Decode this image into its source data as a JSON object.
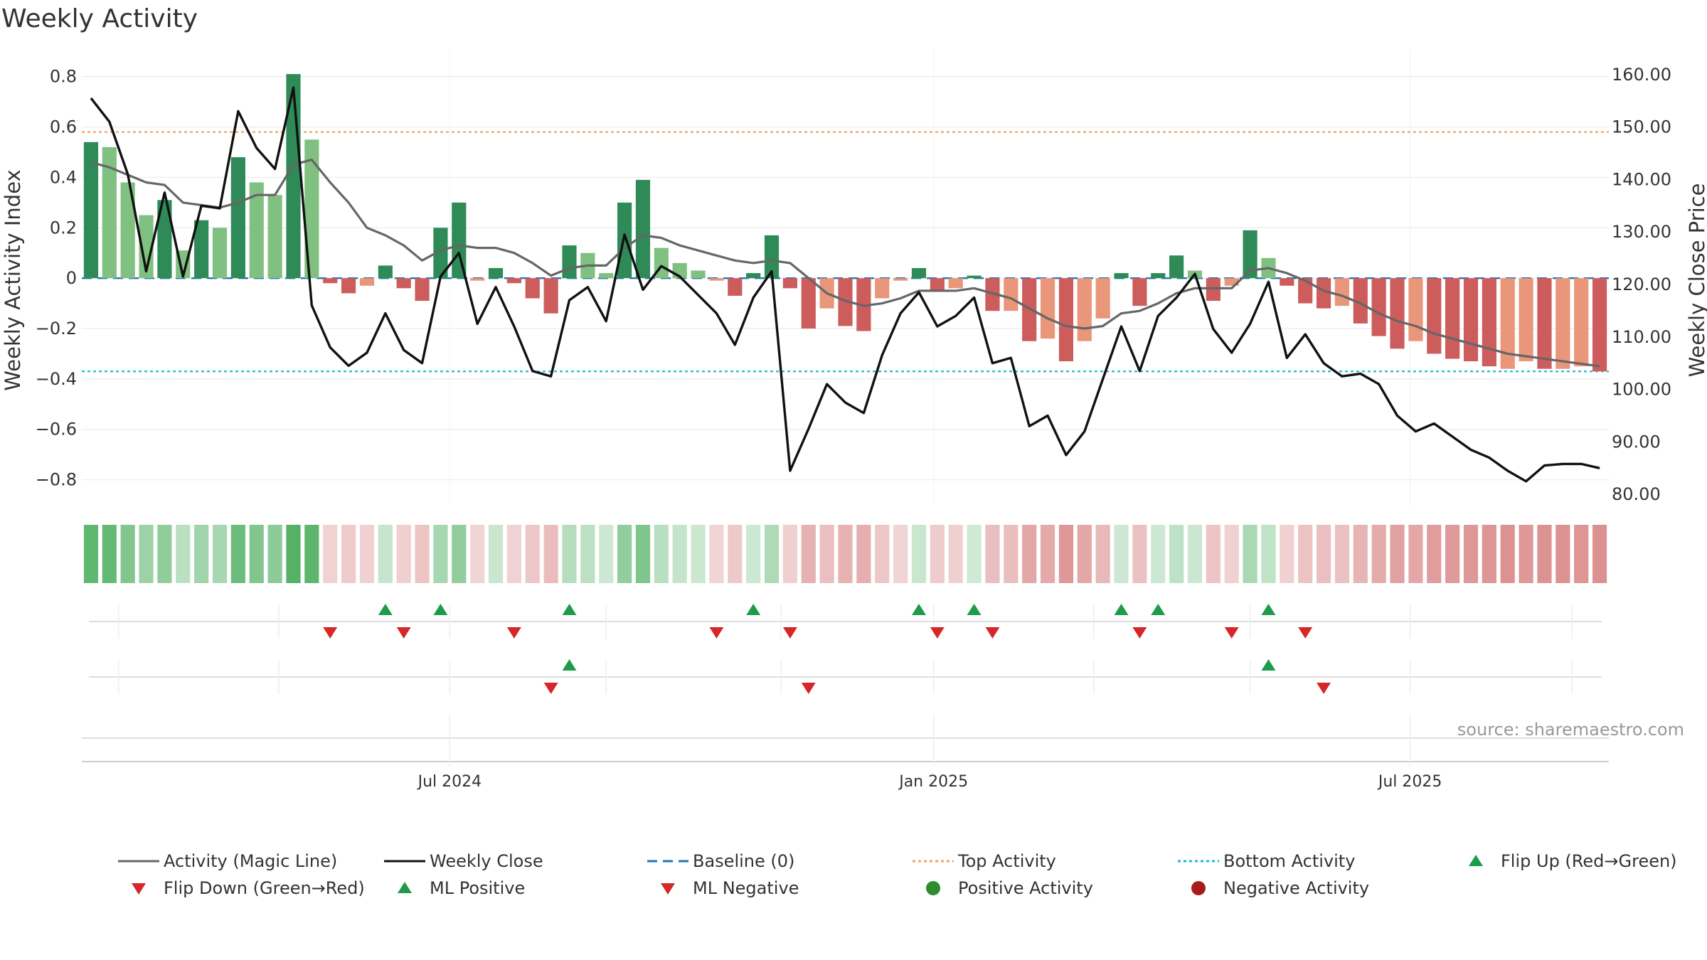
{
  "chart_data": {
    "type": "bar",
    "title": "Weekly Activity",
    "ylabel": "Weekly Activity Index",
    "y2label": "Weekly Close Price",
    "ylim": [
      -0.9,
      0.85
    ],
    "y2lim": [
      78,
      162
    ],
    "yticks": [
      "0.8",
      "0.6",
      "0.4",
      "0.2",
      "0",
      "−0.2",
      "−0.4",
      "−0.6",
      "−0.8"
    ],
    "ytick_values": [
      0.8,
      0.6,
      0.4,
      0.2,
      0,
      -0.2,
      -0.4,
      -0.6,
      -0.8
    ],
    "y2ticks": [
      "160.00",
      "150.00",
      "140.00",
      "130.00",
      "120.00",
      "110.00",
      "100.00",
      "90.00",
      "80.00"
    ],
    "y2tick_values": [
      160,
      150,
      140,
      130,
      120,
      110,
      100,
      90,
      80
    ],
    "x_ticks": [
      {
        "label": "Jul 2024",
        "week": 19.5
      },
      {
        "label": "Jan 2025",
        "week": 45.8
      },
      {
        "label": "Jul 2025",
        "week": 71.7
      }
    ],
    "activity": [
      0.54,
      0.52,
      0.38,
      0.25,
      0.31,
      0.11,
      0.23,
      0.2,
      0.48,
      0.38,
      0.33,
      0.81,
      0.55,
      -0.02,
      -0.06,
      -0.03,
      0.05,
      -0.04,
      -0.09,
      0.2,
      0.3,
      -0.01,
      0.04,
      -0.02,
      -0.08,
      -0.14,
      0.13,
      0.1,
      0.02,
      0.3,
      0.39,
      0.12,
      0.06,
      0.03,
      -0.01,
      -0.07,
      0.02,
      0.17,
      -0.04,
      -0.2,
      -0.12,
      -0.19,
      -0.21,
      -0.08,
      -0.01,
      0.04,
      -0.05,
      -0.04,
      0.01,
      -0.13,
      -0.13,
      -0.25,
      -0.24,
      -0.33,
      -0.25,
      -0.16,
      0.02,
      -0.11,
      0.02,
      0.09,
      0.03,
      -0.09,
      -0.03,
      0.19,
      0.08,
      -0.03,
      -0.1,
      -0.12,
      -0.11,
      -0.18,
      -0.23,
      -0.28,
      -0.25,
      -0.3,
      -0.32,
      -0.33,
      -0.35,
      -0.36,
      -0.33,
      -0.36,
      -0.36,
      -0.35,
      -0.37
    ],
    "bar_shade": [
      "dark",
      "light",
      "light",
      "light",
      "dark",
      "light",
      "dark",
      "light",
      "dark",
      "light",
      "light",
      "dark",
      "light",
      "dark",
      "dark",
      "light",
      "dark",
      "dark",
      "dark",
      "dark",
      "dark",
      "light",
      "dark",
      "dark",
      "dark",
      "dark",
      "dark",
      "light",
      "light",
      "dark",
      "dark",
      "light",
      "light",
      "light",
      "light",
      "dark",
      "dark",
      "dark",
      "dark",
      "dark",
      "light",
      "dark",
      "dark",
      "light",
      "light",
      "dark",
      "dark",
      "light",
      "dark",
      "dark",
      "light",
      "dark",
      "light",
      "dark",
      "light",
      "light",
      "dark",
      "dark",
      "dark",
      "dark",
      "light",
      "dark",
      "light",
      "dark",
      "light",
      "dark",
      "dark",
      "dark",
      "light",
      "dark",
      "dark",
      "dark",
      "light",
      "dark",
      "dark",
      "dark",
      "dark",
      "light",
      "light",
      "dark",
      "light",
      "light",
      "dark"
    ],
    "magic_line": [
      0.46,
      0.44,
      0.41,
      0.38,
      0.37,
      0.3,
      0.29,
      0.28,
      0.3,
      0.33,
      0.33,
      0.45,
      0.47,
      0.38,
      0.3,
      0.2,
      0.17,
      0.13,
      0.07,
      0.11,
      0.13,
      0.12,
      0.12,
      0.1,
      0.06,
      0.01,
      0.04,
      0.05,
      0.05,
      0.12,
      0.17,
      0.16,
      0.13,
      0.11,
      0.09,
      0.07,
      0.06,
      0.07,
      0.06,
      0.0,
      -0.06,
      -0.09,
      -0.11,
      -0.1,
      -0.08,
      -0.05,
      -0.05,
      -0.05,
      -0.04,
      -0.06,
      -0.08,
      -0.12,
      -0.16,
      -0.19,
      -0.2,
      -0.19,
      -0.14,
      -0.13,
      -0.1,
      -0.06,
      -0.04,
      -0.04,
      -0.04,
      0.03,
      0.04,
      0.02,
      -0.01,
      -0.05,
      -0.07,
      -0.1,
      -0.14,
      -0.17,
      -0.19,
      -0.22,
      -0.24,
      -0.26,
      -0.28,
      -0.3,
      -0.31,
      -0.32,
      -0.33,
      -0.34,
      -0.35
    ],
    "weekly_close": [
      155.5,
      151,
      141,
      122.5,
      137.5,
      121.5,
      135,
      134.5,
      153,
      146,
      142,
      157.5,
      116,
      108,
      104.5,
      107,
      114.5,
      107.5,
      105,
      121.5,
      126,
      112.5,
      119.5,
      112,
      103.5,
      102.5,
      117,
      119.5,
      113,
      129.5,
      119,
      123.5,
      121.5,
      118,
      114.5,
      108.5,
      117.5,
      122.5,
      84.5,
      92.5,
      101,
      97.5,
      95.5,
      106.5,
      114.5,
      118.5,
      112,
      114,
      117.5,
      105,
      106,
      93,
      95,
      87.5,
      92,
      102,
      112,
      103.5,
      114,
      117.5,
      122,
      111.5,
      107,
      112.5,
      120.5,
      106,
      110.5,
      105,
      102.5,
      103,
      101,
      95,
      92,
      93.5,
      91,
      88.5,
      87,
      84.5,
      82.5,
      85.5,
      85.8,
      85.8,
      85
    ],
    "baseline": 0,
    "top_activity": 0.58,
    "bottom_activity": -0.37,
    "flip_up": [
      16,
      19,
      26,
      36,
      45,
      48,
      56,
      58,
      64
    ],
    "flip_down": [
      13,
      17,
      23,
      34,
      38,
      46,
      49,
      57,
      62,
      66
    ],
    "ml_positive": [
      26,
      64
    ],
    "ml_negative": [
      25,
      39,
      67
    ],
    "legend": [
      {
        "label": "Activity (Magic Line)",
        "kind": "line",
        "color": "#666666",
        "dash": ""
      },
      {
        "label": "Weekly Close",
        "kind": "line",
        "color": "#111111",
        "dash": ""
      },
      {
        "label": "Baseline (0)",
        "kind": "line",
        "color": "#1f77b4",
        "dash": "14,8"
      },
      {
        "label": "Top Activity",
        "kind": "line",
        "color": "#f4a261",
        "dash": "4,4"
      },
      {
        "label": "Bottom Activity",
        "kind": "line",
        "color": "#17becf",
        "dash": "4,4"
      },
      {
        "label": "Flip Up (Red→Green)",
        "kind": "up",
        "color": "#1e9b4a",
        "dash": ""
      },
      {
        "label": "Flip Down (Green→Red)",
        "kind": "down",
        "color": "#d62728",
        "dash": ""
      },
      {
        "label": "ML Positive",
        "kind": "up",
        "color": "#1e9b4a",
        "dash": ""
      },
      {
        "label": "ML Negative",
        "kind": "down",
        "color": "#d62728",
        "dash": ""
      },
      {
        "label": "Positive Activity",
        "kind": "dot",
        "color": "#2e8b2e",
        "dash": ""
      },
      {
        "label": "Negative Activity",
        "kind": "dot",
        "color": "#a61c1c",
        "dash": ""
      }
    ],
    "source": "source: sharemaestro.com",
    "colors": {
      "pos_dark": "#2e8b57",
      "pos_light": "#80c080",
      "neg_dark": "#cd5c5c",
      "neg_light": "#e9967a",
      "close": "#111111",
      "magic": "#666666",
      "baseline": "#1f77b4",
      "top": "#f4a261",
      "bottom": "#17becf",
      "up": "#1e9b4a",
      "down": "#d62728"
    }
  }
}
